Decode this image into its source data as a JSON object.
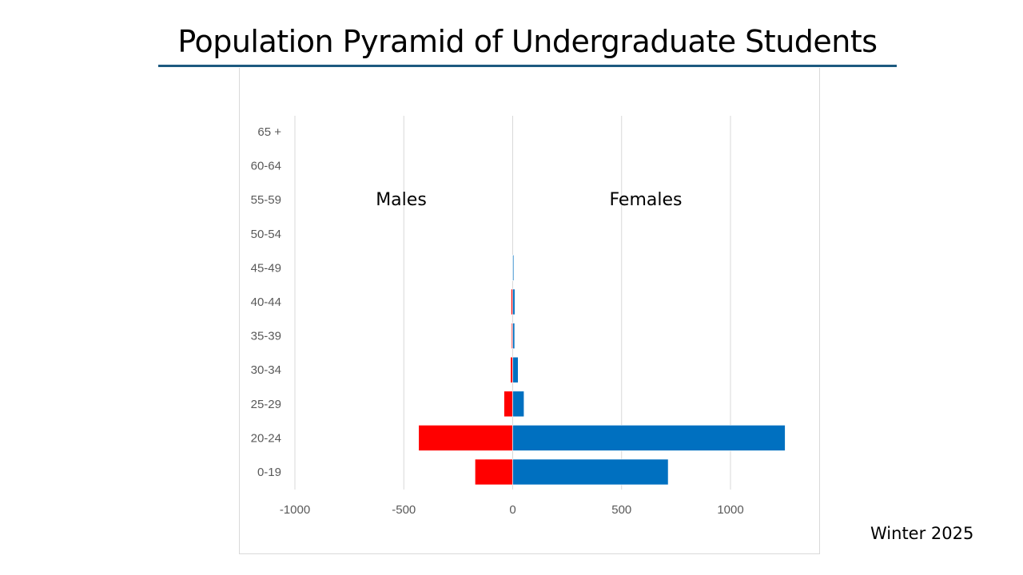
{
  "title": "Population Pyramid of Undergraduate Students",
  "footer": "Winter 2025",
  "chart_data": {
    "type": "bar",
    "orientation": "horizontal",
    "categories": [
      "0-19",
      "20-24",
      "25-29",
      "30-34",
      "35-39",
      "40-44",
      "45-49",
      "50-54",
      "55-59",
      "60-64",
      "65 +"
    ],
    "series": [
      {
        "name": "Males",
        "color": "#ff0000",
        "values": [
          -173,
          -432,
          -40,
          -10,
          -5,
          -7,
          -1,
          0,
          0,
          0,
          0
        ]
      },
      {
        "name": "Females",
        "color": "#0070c0",
        "values": [
          714,
          1251,
          52,
          25,
          9,
          10,
          5,
          0,
          0,
          0,
          0
        ]
      }
    ],
    "xlim": [
      -1000,
      1250
    ],
    "xticks": [
      -1000,
      -500,
      0,
      500,
      1000
    ],
    "xtick_labels": [
      "-1000",
      "-500",
      "0",
      "500",
      "1000"
    ],
    "grid": true,
    "annotations": [
      "Males",
      "Females"
    ]
  }
}
